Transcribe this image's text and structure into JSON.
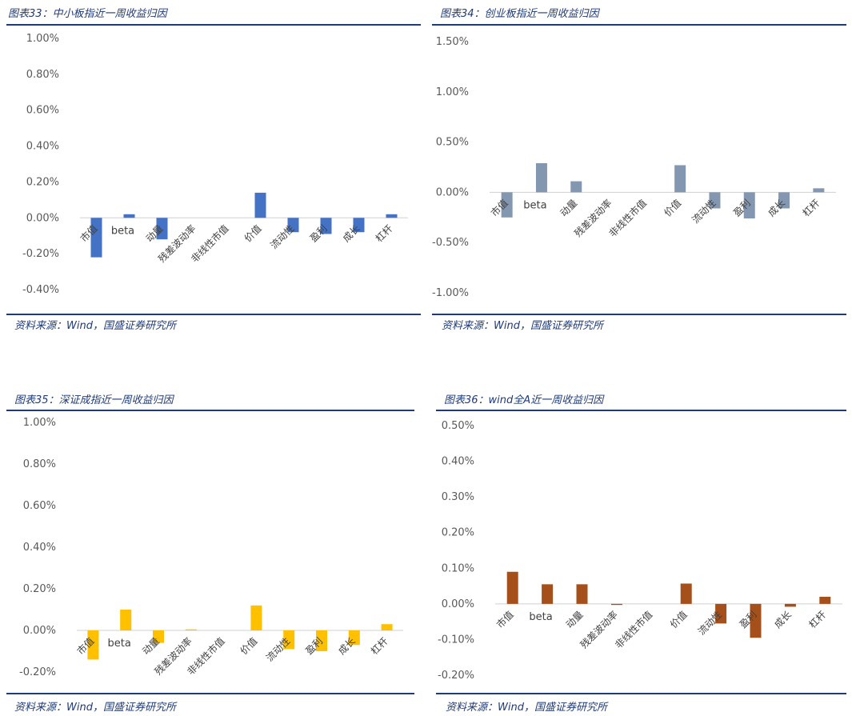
{
  "source_text": "资料来源：Wind，国盛证券研究所",
  "chart_data": [
    {
      "type": "bar",
      "title": "图表33：中小板指近一周收益归因",
      "categories": [
        "市值",
        "beta",
        "动量",
        "残差波动率",
        "非线性市值",
        "价值",
        "流动性",
        "盈利",
        "成长",
        "杠杆"
      ],
      "values": [
        -0.22,
        0.02,
        -0.12,
        0.0,
        0.0,
        0.14,
        -0.08,
        -0.09,
        -0.08,
        0.02
      ],
      "color": "#4472c4",
      "ylim": [
        -0.4,
        1.0
      ],
      "yticks": [
        -0.4,
        -0.2,
        0.0,
        0.2,
        0.4,
        0.6,
        0.8,
        1.0
      ],
      "ytick_labels": [
        "-0.40%",
        "-0.20%",
        "0.00%",
        "0.20%",
        "0.40%",
        "0.60%",
        "0.80%",
        "1.00%"
      ],
      "xlabel": "",
      "ylabel": "",
      "grid": false
    },
    {
      "type": "bar",
      "title": "图表34：创业板指近一周收益归因",
      "categories": [
        "市值",
        "beta",
        "动量",
        "残差波动率",
        "非线性市值",
        "价值",
        "流动性",
        "盈利",
        "成长",
        "杠杆"
      ],
      "values": [
        -0.25,
        0.29,
        0.11,
        0.0,
        0.0,
        0.27,
        -0.16,
        -0.26,
        -0.16,
        0.04
      ],
      "color": "#8497b0",
      "ylim": [
        -1.0,
        1.5
      ],
      "yticks": [
        -1.0,
        -0.5,
        0.0,
        0.5,
        1.0,
        1.5
      ],
      "ytick_labels": [
        "-1.00%",
        "-0.50%",
        "0.00%",
        "0.50%",
        "1.00%",
        "1.50%"
      ],
      "xlabel": "",
      "ylabel": "",
      "grid": false
    },
    {
      "type": "bar",
      "title": "图表35：深证成指近一周收益归因",
      "categories": [
        "市值",
        "beta",
        "动量",
        "残差波动率",
        "非线性市值",
        "价值",
        "流动性",
        "盈利",
        "成长",
        "杠杆"
      ],
      "values": [
        -0.14,
        0.1,
        -0.06,
        0.005,
        0.0,
        0.12,
        -0.09,
        -0.1,
        -0.07,
        0.03
      ],
      "color": "#ffc000",
      "ylim": [
        -0.2,
        1.0
      ],
      "yticks": [
        -0.2,
        0.0,
        0.2,
        0.4,
        0.6,
        0.8,
        1.0
      ],
      "ytick_labels": [
        "-0.20%",
        "0.00%",
        "0.20%",
        "0.40%",
        "0.60%",
        "0.80%",
        "1.00%"
      ],
      "xlabel": "",
      "ylabel": "",
      "grid": false
    },
    {
      "type": "bar",
      "title": "图表36：wind全A近一周收益归因",
      "categories": [
        "市值",
        "beta",
        "动量",
        "残差波动率",
        "非线性市值",
        "价值",
        "流动性",
        "盈利",
        "成长",
        "杠杆"
      ],
      "values": [
        0.09,
        0.055,
        0.055,
        -0.003,
        0.0,
        0.057,
        -0.055,
        -0.095,
        -0.008,
        0.02
      ],
      "color": "#a5501a",
      "ylim": [
        -0.2,
        0.5
      ],
      "yticks": [
        -0.2,
        -0.1,
        0.0,
        0.1,
        0.2,
        0.3,
        0.4,
        0.5
      ],
      "ytick_labels": [
        "-0.20%",
        "-0.10%",
        "0.00%",
        "0.10%",
        "0.20%",
        "0.30%",
        "0.40%",
        "0.50%"
      ],
      "xlabel": "",
      "ylabel": "",
      "grid": false
    }
  ]
}
